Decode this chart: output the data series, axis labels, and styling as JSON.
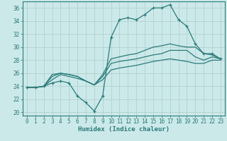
{
  "xlabel": "Humidex (Indice chaleur)",
  "ylabel": "",
  "background_color": "#cce9e9",
  "grid_color": "#b0d0d0",
  "line_color": "#2a7a7a",
  "xlim": [
    -0.5,
    23.5
  ],
  "ylim": [
    19.5,
    37.0
  ],
  "xticks": [
    0,
    1,
    2,
    3,
    4,
    5,
    6,
    7,
    8,
    9,
    10,
    11,
    12,
    13,
    14,
    15,
    16,
    17,
    18,
    19,
    20,
    21,
    22,
    23
  ],
  "yticks": [
    20,
    22,
    24,
    26,
    28,
    30,
    32,
    34,
    36
  ],
  "series": [
    {
      "x": [
        0,
        1,
        2,
        3,
        4,
        5,
        6,
        7,
        8,
        9,
        10,
        11,
        12,
        13,
        14,
        15,
        16,
        17,
        18,
        19,
        20,
        21,
        22,
        23
      ],
      "y": [
        23.8,
        23.8,
        24.0,
        24.5,
        24.8,
        24.5,
        22.5,
        21.5,
        20.2,
        22.5,
        31.5,
        34.2,
        34.5,
        34.2,
        35.0,
        36.0,
        36.0,
        36.5,
        34.2,
        33.2,
        30.5,
        29.0,
        29.0,
        28.2
      ],
      "marker": "+"
    },
    {
      "x": [
        0,
        1,
        2,
        3,
        4,
        5,
        6,
        7,
        8,
        9,
        10,
        11,
        12,
        13,
        14,
        15,
        16,
        17,
        18,
        19,
        20,
        21,
        22,
        23
      ],
      "y": [
        23.8,
        23.8,
        24.0,
        25.8,
        26.0,
        25.8,
        25.5,
        24.8,
        24.2,
        25.8,
        28.2,
        28.5,
        28.8,
        29.0,
        29.5,
        30.0,
        30.2,
        30.5,
        30.2,
        30.0,
        30.0,
        29.0,
        28.8,
        28.2
      ],
      "marker": null
    },
    {
      "x": [
        0,
        1,
        2,
        3,
        4,
        5,
        6,
        7,
        8,
        9,
        10,
        11,
        12,
        13,
        14,
        15,
        16,
        17,
        18,
        19,
        20,
        21,
        22,
        23
      ],
      "y": [
        23.8,
        23.8,
        24.0,
        25.5,
        26.0,
        25.8,
        25.5,
        24.8,
        24.2,
        25.5,
        27.5,
        27.8,
        28.0,
        28.2,
        28.5,
        28.8,
        29.0,
        29.5,
        29.5,
        29.5,
        28.5,
        28.0,
        28.5,
        28.2
      ],
      "marker": null
    },
    {
      "x": [
        0,
        1,
        2,
        3,
        4,
        5,
        6,
        7,
        8,
        9,
        10,
        11,
        12,
        13,
        14,
        15,
        16,
        17,
        18,
        19,
        20,
        21,
        22,
        23
      ],
      "y": [
        23.8,
        23.8,
        24.0,
        25.0,
        25.8,
        25.5,
        25.2,
        24.8,
        24.2,
        25.0,
        26.5,
        26.8,
        27.0,
        27.2,
        27.5,
        27.8,
        28.0,
        28.2,
        28.0,
        27.8,
        27.5,
        27.5,
        28.0,
        28.0
      ],
      "marker": null
    }
  ]
}
